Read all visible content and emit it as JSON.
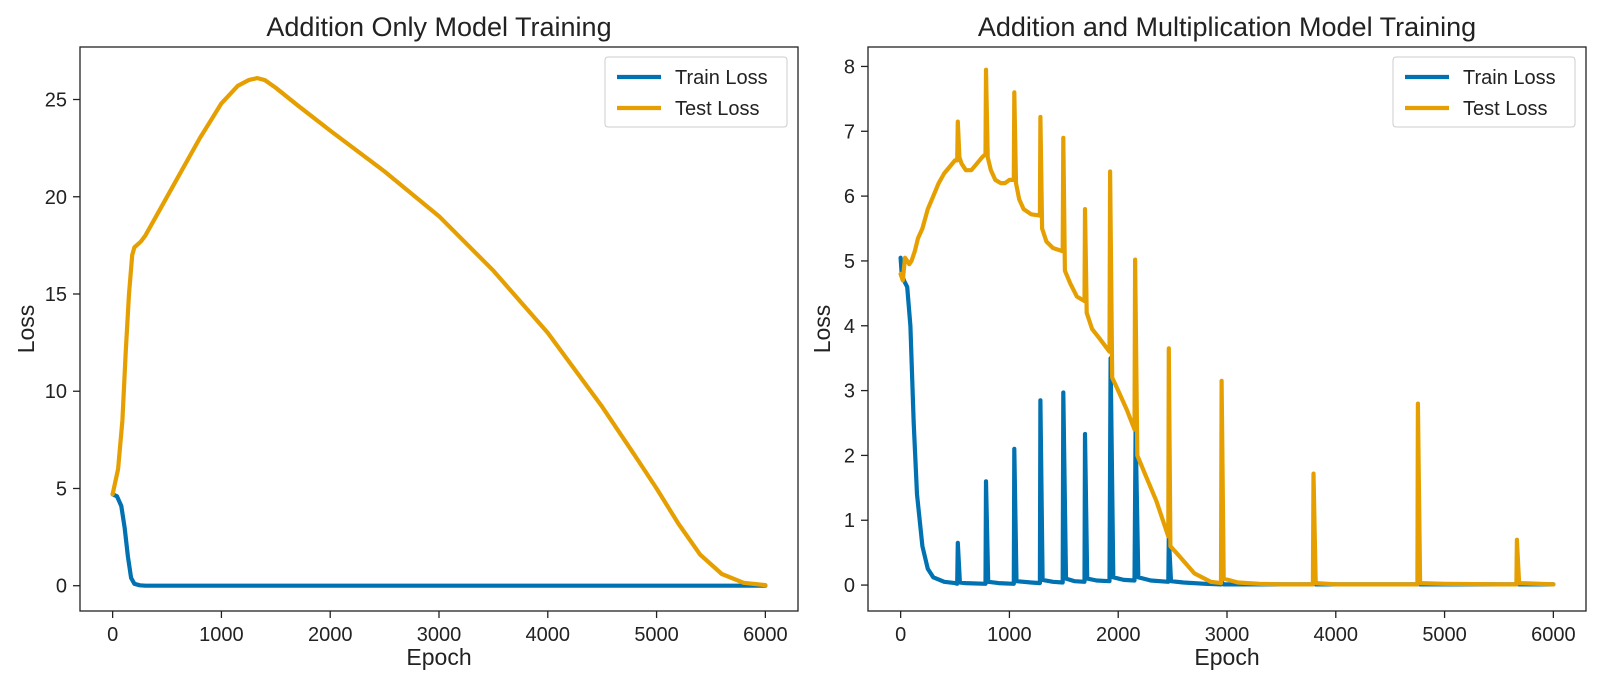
{
  "chart_data": [
    {
      "type": "line",
      "title": "Addition Only Model Training",
      "xlabel": "Epoch",
      "ylabel": "Loss",
      "xlim": [
        -300,
        6300
      ],
      "ylim": [
        -1.3,
        27.7
      ],
      "xticks": [
        0,
        1000,
        2000,
        3000,
        4000,
        5000,
        6000
      ],
      "yticks": [
        0,
        5,
        10,
        15,
        20,
        25
      ],
      "legend_position": "top-right",
      "series": [
        {
          "name": "Train Loss",
          "color": "#0072b2",
          "x": [
            0,
            40,
            80,
            110,
            140,
            170,
            200,
            250,
            300,
            500,
            1000,
            2000,
            3000,
            4000,
            5000,
            6000
          ],
          "y": [
            4.7,
            4.6,
            4.1,
            3.0,
            1.5,
            0.4,
            0.1,
            0.02,
            0.0,
            0.0,
            0.0,
            0.0,
            0.0,
            0.0,
            0.0,
            0.0
          ]
        },
        {
          "name": "Test Loss",
          "color": "#e69f00",
          "x": [
            0,
            50,
            90,
            120,
            150,
            180,
            200,
            220,
            260,
            300,
            400,
            600,
            800,
            1000,
            1150,
            1250,
            1330,
            1400,
            1500,
            1700,
            2000,
            2500,
            3000,
            3500,
            4000,
            4500,
            4800,
            5000,
            5200,
            5400,
            5600,
            5800,
            6000
          ],
          "y": [
            4.7,
            6.0,
            8.5,
            12.0,
            15.0,
            17.0,
            17.4,
            17.5,
            17.7,
            18.0,
            19.0,
            21.0,
            23.0,
            24.8,
            25.7,
            26.0,
            26.1,
            26.0,
            25.6,
            24.7,
            23.4,
            21.3,
            19.0,
            16.2,
            13.0,
            9.2,
            6.7,
            5.0,
            3.2,
            1.6,
            0.6,
            0.15,
            0.03
          ]
        }
      ]
    },
    {
      "type": "line",
      "title": "Addition and Multiplication Model Training",
      "xlabel": "Epoch",
      "ylabel": "Loss",
      "xlim": [
        -300,
        6300
      ],
      "ylim": [
        -0.4,
        8.3
      ],
      "xticks": [
        0,
        1000,
        2000,
        3000,
        4000,
        5000,
        6000
      ],
      "yticks": [
        0,
        1,
        2,
        3,
        4,
        5,
        6,
        7,
        8
      ],
      "legend_position": "top-right",
      "series": [
        {
          "name": "Train Loss",
          "color": "#0072b2",
          "x": [
            0,
            10,
            30,
            60,
            90,
            120,
            150,
            200,
            250,
            300,
            400,
            500,
            520,
            525,
            545,
            600,
            780,
            785,
            805,
            900,
            1040,
            1045,
            1065,
            1200,
            1280,
            1285,
            1305,
            1400,
            1490,
            1495,
            1520,
            1600,
            1690,
            1695,
            1715,
            1800,
            1920,
            1930,
            1955,
            2050,
            2150,
            2160,
            2185,
            2300,
            2460,
            2465,
            2485,
            2600,
            2800,
            2945,
            2950,
            2970,
            3200,
            3500,
            3790,
            3795,
            3815,
            4000,
            4500,
            4750,
            4755,
            4775,
            5000,
            5500,
            5660,
            5665,
            5685,
            6000
          ],
          "y": [
            5.05,
            4.8,
            4.7,
            4.6,
            4.0,
            2.5,
            1.4,
            0.6,
            0.25,
            0.12,
            0.05,
            0.03,
            0.02,
            0.65,
            0.04,
            0.03,
            0.02,
            1.6,
            0.05,
            0.03,
            0.02,
            2.1,
            0.06,
            0.04,
            0.03,
            2.85,
            0.08,
            0.05,
            0.04,
            2.97,
            0.1,
            0.06,
            0.05,
            2.33,
            0.1,
            0.07,
            0.06,
            3.5,
            0.12,
            0.08,
            0.07,
            2.4,
            0.12,
            0.07,
            0.05,
            0.75,
            0.06,
            0.04,
            0.02,
            0.01,
            0.05,
            0.01,
            0.01,
            0.01,
            0.01,
            0.03,
            0.01,
            0.01,
            0.01,
            0.01,
            0.03,
            0.01,
            0.01,
            0.01,
            0.01,
            0.03,
            0.01,
            0.01
          ]
        },
        {
          "name": "Test Loss",
          "color": "#e69f00",
          "x": [
            0,
            20,
            40,
            60,
            80,
            100,
            130,
            160,
            200,
            250,
            300,
            350,
            400,
            450,
            500,
            520,
            525,
            540,
            560,
            600,
            650,
            700,
            750,
            780,
            785,
            800,
            830,
            870,
            920,
            960,
            1000,
            1040,
            1045,
            1060,
            1090,
            1130,
            1200,
            1280,
            1285,
            1300,
            1340,
            1400,
            1490,
            1495,
            1510,
            1560,
            1620,
            1690,
            1695,
            1710,
            1760,
            1830,
            1920,
            1925,
            1945,
            2000,
            2080,
            2150,
            2155,
            2175,
            2250,
            2350,
            2460,
            2465,
            2480,
            2560,
            2700,
            2850,
            2945,
            2950,
            2970,
            3100,
            3300,
            3500,
            3790,
            3795,
            3815,
            4000,
            4500,
            4750,
            4755,
            4775,
            5000,
            5500,
            5660,
            5665,
            5685,
            6000
          ],
          "y": [
            4.8,
            4.7,
            5.05,
            5.0,
            4.95,
            5.0,
            5.15,
            5.35,
            5.5,
            5.8,
            6.0,
            6.2,
            6.35,
            6.45,
            6.55,
            6.55,
            7.15,
            6.6,
            6.5,
            6.4,
            6.4,
            6.5,
            6.6,
            6.65,
            7.95,
            6.6,
            6.4,
            6.25,
            6.2,
            6.2,
            6.25,
            6.25,
            7.6,
            6.2,
            5.95,
            5.8,
            5.72,
            5.7,
            7.22,
            5.5,
            5.3,
            5.2,
            5.15,
            6.9,
            4.85,
            4.65,
            4.45,
            4.38,
            5.8,
            4.2,
            3.95,
            3.8,
            3.6,
            6.38,
            3.2,
            3.0,
            2.7,
            2.4,
            5.02,
            2.0,
            1.7,
            1.3,
            0.75,
            3.65,
            0.6,
            0.45,
            0.18,
            0.05,
            0.03,
            3.15,
            0.1,
            0.04,
            0.02,
            0.01,
            0.01,
            1.72,
            0.03,
            0.01,
            0.01,
            0.01,
            2.8,
            0.03,
            0.02,
            0.01,
            0.01,
            0.7,
            0.03,
            0.01
          ]
        }
      ]
    }
  ]
}
